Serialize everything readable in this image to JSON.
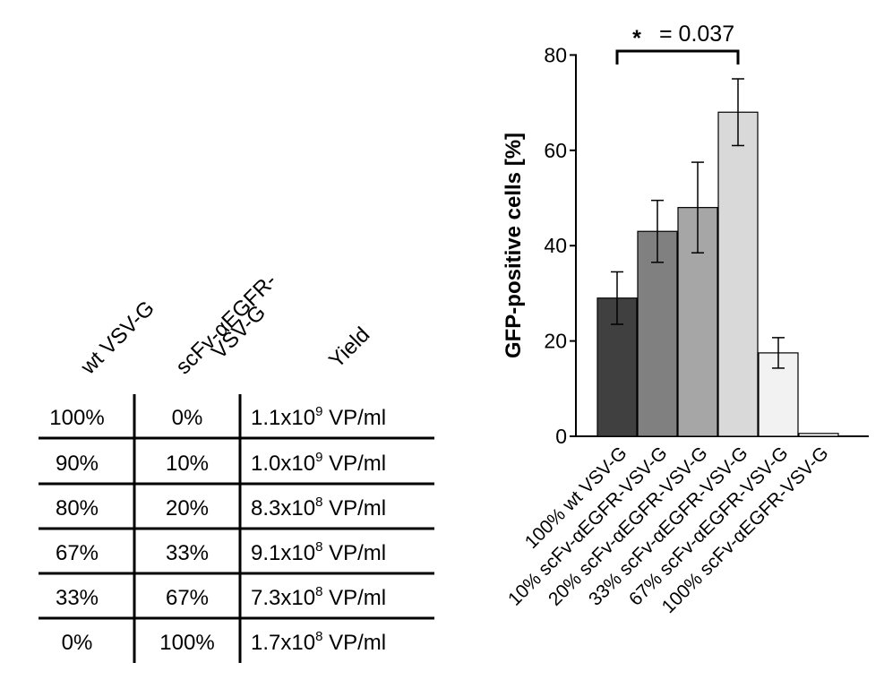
{
  "table": {
    "headers": [
      "wt VSV-G",
      "scFv-αEGFR-",
      "VSV-G",
      "Yield"
    ],
    "rows": [
      {
        "wt": "100%",
        "scfv": "0%",
        "yield_base": "1.1x10",
        "yield_exp": "9",
        "yield_unit": " VP/ml"
      },
      {
        "wt": "90%",
        "scfv": "10%",
        "yield_base": "1.0x10",
        "yield_exp": "9",
        "yield_unit": " VP/ml"
      },
      {
        "wt": "80%",
        "scfv": "20%",
        "yield_base": "8.3x10",
        "yield_exp": "8",
        "yield_unit": " VP/ml"
      },
      {
        "wt": "67%",
        "scfv": "33%",
        "yield_base": "9.1x10",
        "yield_exp": "8",
        "yield_unit": " VP/ml"
      },
      {
        "wt": "33%",
        "scfv": "67%",
        "yield_base": "7.3x10",
        "yield_exp": "8",
        "yield_unit": " VP/ml"
      },
      {
        "wt": "0%",
        "scfv": "100%",
        "yield_base": "1.7x10",
        "yield_exp": "8",
        "yield_unit": " VP/ml"
      }
    ]
  },
  "chart_data": {
    "type": "bar",
    "ylabel": "GFP-positive cells [%]",
    "ylim": [
      0,
      80
    ],
    "yticks": [
      "0",
      "20",
      "40",
      "60",
      "80"
    ],
    "categories": [
      "100% wt VSV-G",
      "10% scFv-αEGFR-VSV-G",
      "20% scFv-αEGFR-VSV-G",
      "33% scFv-αEGFR-VSV-G",
      "67% scFv-αEGFR-VSV-G",
      "100% scFv-αEGFR-VSV-G"
    ],
    "values": [
      29,
      43,
      48,
      68,
      17.5,
      0.6
    ],
    "errors": [
      5.5,
      6.5,
      9.5,
      7,
      3.2,
      0.2
    ],
    "bar_colors": [
      "#404040",
      "#808080",
      "#a6a6a6",
      "#d9d9d9",
      "#f2f2f2",
      "#ffffff"
    ],
    "significance": {
      "star": "*",
      "text": "= 0.037",
      "from": 0,
      "to": 3
    }
  }
}
